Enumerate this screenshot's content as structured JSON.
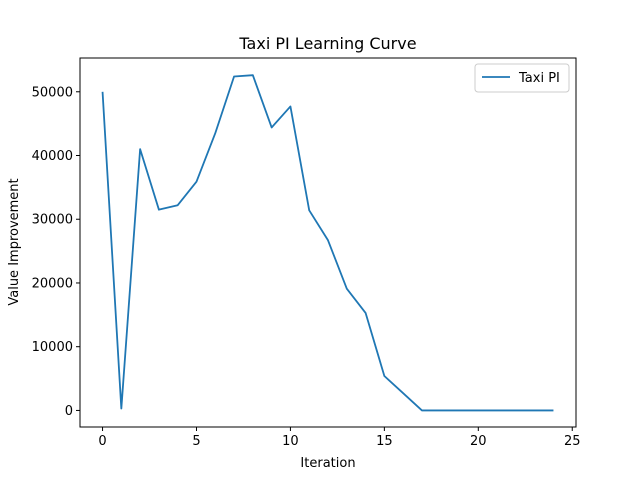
{
  "chart_data": {
    "type": "line",
    "title": "Taxi PI Learning Curve",
    "xlabel": "Iteration",
    "ylabel": "Value Improvement",
    "xlim": [
      -1.2,
      25.2
    ],
    "ylim": [
      -2600,
      55300
    ],
    "xticks": [
      0,
      5,
      10,
      15,
      20,
      25
    ],
    "yticks": [
      0,
      10000,
      20000,
      30000,
      40000,
      50000
    ],
    "grid": false,
    "legend_position": "top-right",
    "series": [
      {
        "name": "Taxi PI",
        "color": "#1f77b4",
        "x": [
          0,
          1,
          2,
          3,
          4,
          5,
          6,
          7,
          8,
          9,
          10,
          11,
          12,
          13,
          14,
          15,
          16,
          17,
          18,
          19,
          20,
          21,
          22,
          23,
          24
        ],
        "y": [
          50000,
          300,
          41000,
          31500,
          32200,
          35900,
          43500,
          52400,
          52600,
          44400,
          47700,
          31400,
          26700,
          19100,
          15300,
          5400,
          2700,
          0,
          0,
          0,
          0,
          0,
          0,
          0,
          0
        ]
      }
    ]
  }
}
